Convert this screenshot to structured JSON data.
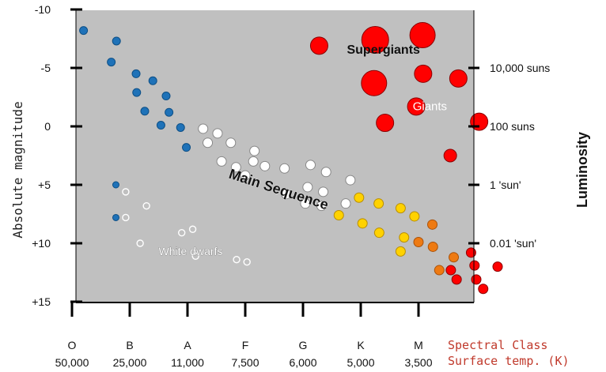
{
  "chart_data": {
    "type": "scatter",
    "title": "",
    "ylabel": "Absolute magnitude",
    "y2label": "Luminosity",
    "ylim": [
      -10,
      15
    ],
    "y_inverted": true,
    "y_ticks": [
      "-10",
      "-5",
      "0",
      "+5",
      "+10",
      "+15"
    ],
    "y_tick_values": [
      -10,
      -5,
      0,
      5,
      10,
      15
    ],
    "right_ticks": [
      {
        "label": "10,000 suns",
        "mag": -5
      },
      {
        "label": "100 suns",
        "mag": 0
      },
      {
        "label": "1 'sun'",
        "mag": 5
      },
      {
        "label": "0.01 'sun'",
        "mag": 10
      }
    ],
    "x_classes": [
      "O",
      "B",
      "A",
      "F",
      "G",
      "K",
      "M"
    ],
    "x_temps": [
      "50,000",
      "25,000",
      "11,000",
      "7,500",
      "6,000",
      "5,000",
      "3,500"
    ],
    "x_class_positions": [
      0,
      1,
      2,
      3,
      4,
      5,
      6
    ],
    "xlabel_line1": "Spectral Class",
    "xlabel_line2": "Surface temp. (K)",
    "xlim": [
      0,
      7.0
    ],
    "background_color": "#c0c0c0",
    "grid": false,
    "legend": "none",
    "colors": {
      "blue": "#1f72b8",
      "white": "#ffffff",
      "yellow": "#ffd200",
      "orange": "#ee7a12",
      "red": "#ff0000",
      "xlabel": "#c0392b"
    },
    "region_labels": [
      {
        "text": "Supergiants",
        "x": 4.76,
        "y": -6.2
      },
      {
        "text": "Giants",
        "x": 5.9,
        "y": -1.4
      },
      {
        "text": "Main Sequence",
        "x": 2.7,
        "y": 4.4
      },
      {
        "text": "White dwarfs",
        "x": 1.5,
        "y": 11.0
      }
    ],
    "stars": [
      {
        "x": 0.2,
        "y": -8.2,
        "size": 5,
        "color": "blue"
      },
      {
        "x": 0.77,
        "y": -7.3,
        "size": 5,
        "color": "blue"
      },
      {
        "x": 0.68,
        "y": -5.5,
        "size": 5,
        "color": "blue"
      },
      {
        "x": 1.11,
        "y": -4.5,
        "size": 5,
        "color": "blue"
      },
      {
        "x": 1.4,
        "y": -3.9,
        "size": 5,
        "color": "blue"
      },
      {
        "x": 1.12,
        "y": -2.9,
        "size": 5,
        "color": "blue"
      },
      {
        "x": 1.63,
        "y": -2.6,
        "size": 5,
        "color": "blue"
      },
      {
        "x": 1.26,
        "y": -1.3,
        "size": 5,
        "color": "blue"
      },
      {
        "x": 1.68,
        "y": -1.2,
        "size": 5,
        "color": "blue"
      },
      {
        "x": 1.54,
        "y": -0.1,
        "size": 5,
        "color": "blue"
      },
      {
        "x": 1.88,
        "y": 0.1,
        "size": 5,
        "color": "blue"
      },
      {
        "x": 1.98,
        "y": 1.8,
        "size": 5,
        "color": "blue"
      },
      {
        "x": 0.76,
        "y": 5.0,
        "size": 4,
        "color": "blue"
      },
      {
        "x": 0.76,
        "y": 7.8,
        "size": 4,
        "color": "blue"
      },
      {
        "x": 2.27,
        "y": 0.2,
        "size": 6,
        "color": "white"
      },
      {
        "x": 2.52,
        "y": 0.6,
        "size": 6,
        "color": "white"
      },
      {
        "x": 2.35,
        "y": 1.4,
        "size": 6,
        "color": "white"
      },
      {
        "x": 2.75,
        "y": 1.4,
        "size": 6,
        "color": "white"
      },
      {
        "x": 3.16,
        "y": 2.1,
        "size": 6,
        "color": "white"
      },
      {
        "x": 2.59,
        "y": 3.0,
        "size": 6,
        "color": "white"
      },
      {
        "x": 2.84,
        "y": 3.5,
        "size": 6,
        "color": "white"
      },
      {
        "x": 3.14,
        "y": 3.0,
        "size": 6,
        "color": "white"
      },
      {
        "x": 3.34,
        "y": 3.4,
        "size": 6,
        "color": "white"
      },
      {
        "x": 3.0,
        "y": 4.2,
        "size": 6,
        "color": "white"
      },
      {
        "x": 3.68,
        "y": 3.6,
        "size": 6,
        "color": "white"
      },
      {
        "x": 4.13,
        "y": 3.3,
        "size": 6,
        "color": "white"
      },
      {
        "x": 4.4,
        "y": 3.9,
        "size": 6,
        "color": "white"
      },
      {
        "x": 4.82,
        "y": 4.6,
        "size": 6,
        "color": "white"
      },
      {
        "x": 3.71,
        "y": 5.8,
        "size": 6,
        "color": "white"
      },
      {
        "x": 4.08,
        "y": 5.2,
        "size": 6,
        "color": "white"
      },
      {
        "x": 4.35,
        "y": 5.6,
        "size": 6,
        "color": "white"
      },
      {
        "x": 4.04,
        "y": 6.6,
        "size": 6,
        "color": "white"
      },
      {
        "x": 4.32,
        "y": 6.8,
        "size": 6,
        "color": "white"
      },
      {
        "x": 4.74,
        "y": 6.6,
        "size": 6,
        "color": "white"
      },
      {
        "x": 0.93,
        "y": 5.6,
        "size": 4,
        "color": "white",
        "hollow": true
      },
      {
        "x": 1.29,
        "y": 6.8,
        "size": 4,
        "color": "white",
        "hollow": true
      },
      {
        "x": 0.93,
        "y": 7.8,
        "size": 4,
        "color": "white",
        "hollow": true
      },
      {
        "x": 1.9,
        "y": 9.1,
        "size": 4,
        "color": "white",
        "hollow": true
      },
      {
        "x": 2.09,
        "y": 8.8,
        "size": 4,
        "color": "white",
        "hollow": true
      },
      {
        "x": 1.18,
        "y": 10.0,
        "size": 4,
        "color": "white",
        "hollow": true
      },
      {
        "x": 2.14,
        "y": 11.1,
        "size": 4,
        "color": "white",
        "hollow": true
      },
      {
        "x": 2.85,
        "y": 11.4,
        "size": 4,
        "color": "white",
        "hollow": true
      },
      {
        "x": 3.03,
        "y": 11.6,
        "size": 4,
        "color": "white",
        "hollow": true
      },
      {
        "x": 4.97,
        "y": 6.1,
        "size": 6,
        "color": "yellow"
      },
      {
        "x": 5.31,
        "y": 6.6,
        "size": 6,
        "color": "yellow"
      },
      {
        "x": 5.69,
        "y": 7.0,
        "size": 6,
        "color": "yellow"
      },
      {
        "x": 4.62,
        "y": 7.6,
        "size": 6,
        "color": "yellow"
      },
      {
        "x": 5.93,
        "y": 7.7,
        "size": 6,
        "color": "yellow"
      },
      {
        "x": 5.03,
        "y": 8.3,
        "size": 6,
        "color": "yellow"
      },
      {
        "x": 5.32,
        "y": 9.1,
        "size": 6,
        "color": "yellow"
      },
      {
        "x": 5.75,
        "y": 9.5,
        "size": 6,
        "color": "yellow"
      },
      {
        "x": 5.69,
        "y": 10.7,
        "size": 6,
        "color": "yellow"
      },
      {
        "x": 6.24,
        "y": 8.4,
        "size": 6,
        "color": "orange"
      },
      {
        "x": 6.0,
        "y": 9.9,
        "size": 6,
        "color": "orange"
      },
      {
        "x": 6.25,
        "y": 10.3,
        "size": 6,
        "color": "orange"
      },
      {
        "x": 6.61,
        "y": 11.2,
        "size": 6,
        "color": "orange"
      },
      {
        "x": 6.36,
        "y": 12.3,
        "size": 6,
        "color": "orange"
      },
      {
        "x": 6.91,
        "y": 10.8,
        "size": 6,
        "color": "red"
      },
      {
        "x": 6.97,
        "y": 11.9,
        "size": 6,
        "color": "red"
      },
      {
        "x": 6.56,
        "y": 12.3,
        "size": 6,
        "color": "red"
      },
      {
        "x": 6.66,
        "y": 13.1,
        "size": 6,
        "color": "red"
      },
      {
        "x": 7.0,
        "y": 13.1,
        "size": 6,
        "color": "red"
      },
      {
        "x": 7.37,
        "y": 12.0,
        "size": 6,
        "color": "red"
      },
      {
        "x": 7.12,
        "y": 13.9,
        "size": 6,
        "color": "red"
      },
      {
        "x": 4.28,
        "y": -6.9,
        "size": 11,
        "color": "red"
      },
      {
        "x": 5.25,
        "y": -7.4,
        "size": 17,
        "color": "red"
      },
      {
        "x": 6.07,
        "y": -7.8,
        "size": 16,
        "color": "red"
      },
      {
        "x": 5.23,
        "y": -3.7,
        "size": 16,
        "color": "red"
      },
      {
        "x": 6.08,
        "y": -4.5,
        "size": 11,
        "color": "red"
      },
      {
        "x": 6.69,
        "y": -4.1,
        "size": 11,
        "color": "red"
      },
      {
        "x": 5.96,
        "y": -1.7,
        "size": 11,
        "color": "red"
      },
      {
        "x": 5.42,
        "y": -0.3,
        "size": 11,
        "color": "red"
      },
      {
        "x": 7.05,
        "y": -0.4,
        "size": 11,
        "color": "red"
      },
      {
        "x": 6.55,
        "y": 2.5,
        "size": 8,
        "color": "red"
      }
    ]
  }
}
